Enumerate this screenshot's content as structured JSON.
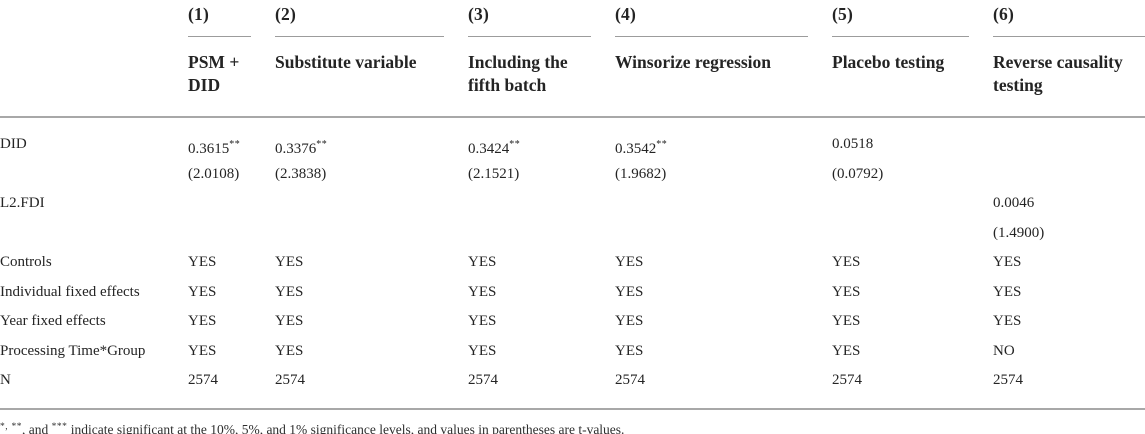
{
  "table": {
    "columns": [
      {
        "number": "(1)",
        "label": "PSM + DID"
      },
      {
        "number": "(2)",
        "label": "Substitute variable"
      },
      {
        "number": "(3)",
        "label": "Including the fifth batch"
      },
      {
        "number": "(4)",
        "label": "Winsorize regression"
      },
      {
        "number": "(5)",
        "label": "Placebo testing"
      },
      {
        "number": "(6)",
        "label": "Reverse causality testing"
      }
    ],
    "rows": [
      {
        "label": "DID",
        "cells": [
          {
            "v": "0.3615",
            "sup": "**"
          },
          {
            "v": "0.3376",
            "sup": "**"
          },
          {
            "v": "0.3424",
            "sup": "**"
          },
          {
            "v": "0.3542",
            "sup": "**"
          },
          {
            "v": "0.0518"
          },
          {}
        ]
      },
      {
        "label": "",
        "cells": [
          {
            "v": "(2.0108)"
          },
          {
            "v": "(2.3838)"
          },
          {
            "v": "(2.1521)"
          },
          {
            "v": "(1.9682)"
          },
          {
            "v": "(0.0792)"
          },
          {}
        ]
      },
      {
        "label": "L2.FDI",
        "cells": [
          {},
          {},
          {},
          {},
          {},
          {
            "v": "0.0046"
          }
        ]
      },
      {
        "label": "",
        "cells": [
          {},
          {},
          {},
          {},
          {},
          {
            "v": "(1.4900)"
          }
        ]
      },
      {
        "label": "Controls",
        "cells": [
          {
            "v": "YES"
          },
          {
            "v": "YES"
          },
          {
            "v": "YES"
          },
          {
            "v": "YES"
          },
          {
            "v": "YES"
          },
          {
            "v": "YES"
          }
        ]
      },
      {
        "label": "Individual fixed effects",
        "cells": [
          {
            "v": "YES"
          },
          {
            "v": "YES"
          },
          {
            "v": "YES"
          },
          {
            "v": "YES"
          },
          {
            "v": "YES"
          },
          {
            "v": "YES"
          }
        ]
      },
      {
        "label": "Year fixed effects",
        "cells": [
          {
            "v": "YES"
          },
          {
            "v": "YES"
          },
          {
            "v": "YES"
          },
          {
            "v": "YES"
          },
          {
            "v": "YES"
          },
          {
            "v": "YES"
          }
        ]
      },
      {
        "label": "Processing Time*Group",
        "cells": [
          {
            "v": "YES"
          },
          {
            "v": "YES"
          },
          {
            "v": "YES"
          },
          {
            "v": "YES"
          },
          {
            "v": "YES"
          },
          {
            "v": "NO"
          }
        ]
      },
      {
        "label": "N",
        "cells": [
          {
            "v": "2574"
          },
          {
            "v": "2574"
          },
          {
            "v": "2574"
          },
          {
            "v": "2574"
          },
          {
            "v": "2574"
          },
          {
            "v": "2574"
          }
        ]
      }
    ]
  },
  "footnote": {
    "parts": [
      {
        "t": "*,",
        "sup": true
      },
      {
        "t": " ",
        "sup": false
      },
      {
        "t": "**",
        "sup": true
      },
      {
        "t": ", and ",
        "sup": false
      },
      {
        "t": "***",
        "sup": true
      },
      {
        "t": " indicate significant at the 10%, 5%, and 1% significance levels, and values in parentheses are t-values.",
        "sup": false
      }
    ]
  },
  "colors": {
    "text": "#242424",
    "rule": "#a8a8a8",
    "column_underline": "#9c9c9c",
    "background": "#ffffff"
  }
}
